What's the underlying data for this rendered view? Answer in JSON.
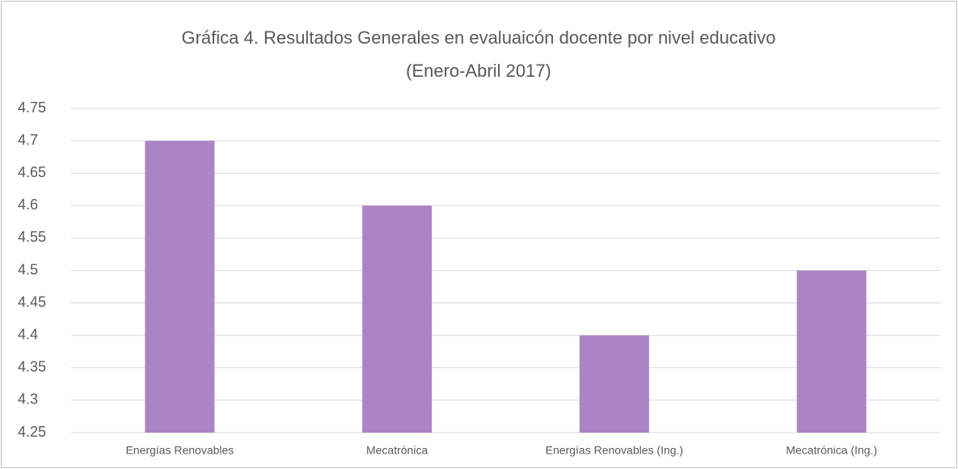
{
  "chart_data": {
    "type": "bar",
    "title": "Gráfica 4. Resultados Generales  en evaluaicón docente por nivel educativo",
    "subtitle": "(Enero-Abril 2017)",
    "categories": [
      "Energías Renovables",
      "Mecatrónica",
      "Energías Renovables (Ing.)",
      "Mecatrónica (Ing.)"
    ],
    "values": [
      4.7,
      4.6,
      4.4,
      4.5
    ],
    "color": "#ac84c6",
    "ylim": [
      4.25,
      4.75
    ],
    "yticks": [
      4.25,
      4.3,
      4.35,
      4.4,
      4.45,
      4.5,
      4.55,
      4.6,
      4.65,
      4.7,
      4.75
    ],
    "grid": true
  }
}
